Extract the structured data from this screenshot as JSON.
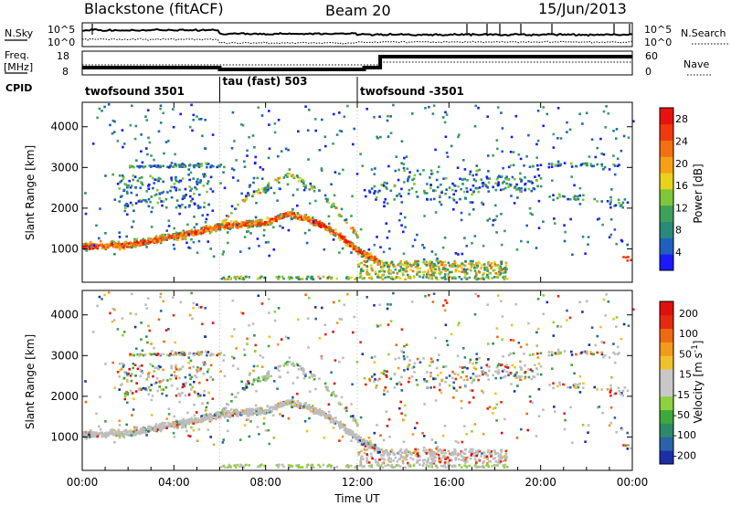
{
  "header": {
    "station": "Blackstone (fitACF)",
    "beam": "Beam 20",
    "date": "15/Jun/2013"
  },
  "noise_panel": {
    "left_label": "N.Sky",
    "right_label": "N.Search",
    "tick_top": "10^5",
    "tick_bottom": "10^0"
  },
  "freq_panel": {
    "left_label_line1": "Freq.",
    "left_label_line2": "[MHz]",
    "left_ticks": [
      "18",
      "8"
    ],
    "right_label": "Nave",
    "right_ticks": [
      "60",
      "0"
    ]
  },
  "cpid": {
    "label": "CPID",
    "segments": [
      {
        "start_h": 0,
        "end_h": 6,
        "name": "twofsound 3501"
      },
      {
        "start_h": 6,
        "end_h": 12,
        "name": "tau (fast) 503"
      },
      {
        "start_h": 12,
        "end_h": 24,
        "name": "twofsound -3501"
      }
    ]
  },
  "colors": {
    "frame": "#000000",
    "panel_bg": "#ffffff",
    "ground_scatter": "#bdbdbd"
  },
  "chart_data": [
    {
      "type": "heatmap",
      "name_key": "power",
      "xlabel": "",
      "ylabel": "Slant Range [km]",
      "xlim": [
        0,
        24
      ],
      "ylim": [
        180,
        4600
      ],
      "yticks": [
        1000,
        2000,
        3000,
        4000
      ],
      "colorbar": {
        "label": "Power [dB]",
        "tick_labels": [
          "4",
          "8",
          "12",
          "16",
          "20",
          "24",
          "28"
        ],
        "colors": [
          "#1a1aff",
          "#1f5fbf",
          "#2a8a7a",
          "#3fa05a",
          "#7ec63a",
          "#e8d21a",
          "#f5a015",
          "#f27010",
          "#ef3a0e",
          "#e8120c"
        ]
      },
      "features": [
        {
          "kind": "band",
          "t": [
            0,
            2,
            4,
            6,
            7,
            8,
            9,
            10,
            11,
            12,
            13
          ],
          "r": [
            1050,
            1100,
            1300,
            1550,
            1600,
            1650,
            1850,
            1700,
            1400,
            950,
            650
          ],
          "level": "high"
        },
        {
          "kind": "arc",
          "t": [
            6,
            7,
            8,
            9,
            10,
            11,
            12
          ],
          "r": [
            1600,
            2200,
            2500,
            2850,
            2500,
            2000,
            1300
          ],
          "level": "mid"
        },
        {
          "kind": "patch",
          "t": [
            13,
            15,
            17,
            18.5
          ],
          "r": [
            600,
            650,
            600,
            550
          ],
          "level": "mid"
        },
        {
          "kind": "patch",
          "t": [
            20.5,
            22,
            24
          ],
          "r": [
            2300,
            2200,
            2050
          ],
          "level": "low"
        },
        {
          "kind": "patch",
          "t": [
            23.5,
            24
          ],
          "r": [
            800,
            700
          ],
          "level": "high"
        }
      ]
    },
    {
      "type": "heatmap",
      "name_key": "velocity",
      "xlabel": "Time UT",
      "ylabel": "Slant Range [km]",
      "xlim": [
        0,
        24
      ],
      "ylim": [
        180,
        4600
      ],
      "yticks": [
        1000,
        2000,
        3000,
        4000
      ],
      "xticks": [
        "00:00",
        "04:00",
        "08:00",
        "12:00",
        "16:00",
        "20:00",
        "00:00"
      ],
      "colorbar": {
        "label": "Velocity [m s^-1]",
        "tick_labels": [
          "200",
          "100",
          "50",
          "15",
          "-15",
          "-50",
          "-100",
          "-200"
        ],
        "colors": [
          "#1c2fa6",
          "#2a63a8",
          "#2e8a66",
          "#3fa83c",
          "#8ed13f",
          "#c8c8c8",
          "#c8c8c8",
          "#f0c22a",
          "#f39a1a",
          "#f06a12",
          "#e62a10",
          "#e0100c"
        ]
      }
    }
  ]
}
